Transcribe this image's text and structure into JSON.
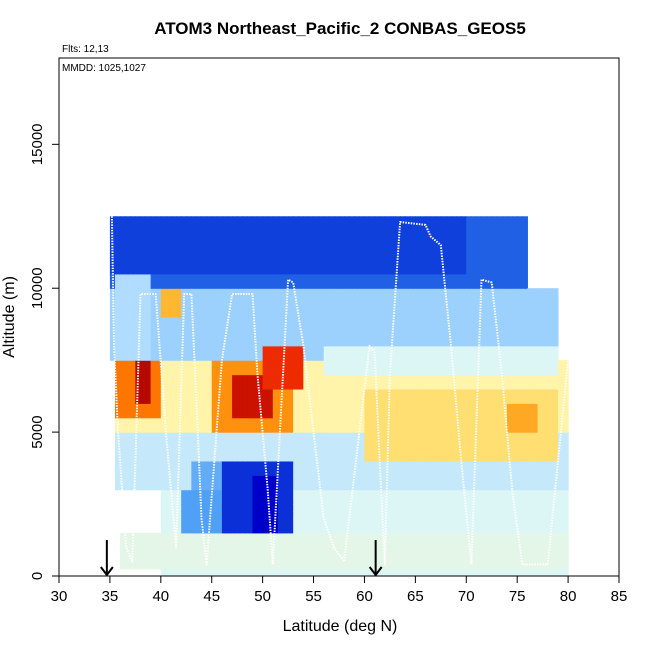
{
  "chart_data": {
    "type": "heatmap",
    "title": "ATOM3 Northeast_Pacific_2 CONBAS_GEOS5",
    "annotations": [
      "Flts: 12,13",
      "MMDD: 1025,1027"
    ],
    "xlabel": "Latitude (deg N)",
    "ylabel": "Altitude (m)",
    "xlim": [
      30,
      85
    ],
    "ylim": [
      0,
      18000
    ],
    "xticks": [
      30,
      35,
      40,
      45,
      50,
      55,
      60,
      65,
      70,
      75,
      80,
      85
    ],
    "yticks": [
      0,
      5000,
      10000,
      15000
    ],
    "grid": false,
    "legend": "none",
    "colors": {
      "deep_blue": "#0000c8",
      "blue": "#1f6fe0",
      "light_blue": "#a9d8ff",
      "pale_cyan": "#dff6f6",
      "pale_yellow": "#fff6b0",
      "orange": "#ff9900",
      "red": "#e00000",
      "track": "#ffffff",
      "arrow": "#000000"
    },
    "level_scale": "0 = deep blue (low), 4 = pale, 8 = dark red (high)",
    "regions": [
      {
        "lat": [
          40,
          80
        ],
        "alt": [
          0,
          3000
        ],
        "level": 3.6
      },
      {
        "lat": [
          35.5,
          80
        ],
        "alt": [
          3000,
          5000
        ],
        "level": 3.3
      },
      {
        "lat": [
          35.5,
          80
        ],
        "alt": [
          5000,
          7500
        ],
        "level": 4.6
      },
      {
        "lat": [
          35,
          79
        ],
        "alt": [
          7500,
          10000
        ],
        "level": 2.8
      },
      {
        "lat": [
          35,
          76
        ],
        "alt": [
          10000,
          12500
        ],
        "level": 1.2
      },
      {
        "lat": [
          43,
          52
        ],
        "alt": [
          3000,
          4000
        ],
        "level": 2.2
      },
      {
        "lat": [
          46,
          53
        ],
        "alt": [
          1000,
          4000
        ],
        "level": 0.6
      },
      {
        "lat": [
          49,
          51.5
        ],
        "alt": [
          1500,
          3500
        ],
        "level": 0.0
      },
      {
        "lat": [
          42,
          46
        ],
        "alt": [
          1000,
          3000
        ],
        "level": 2.0
      },
      {
        "lat": [
          45,
          53
        ],
        "alt": [
          5000,
          7500
        ],
        "level": 6.3
      },
      {
        "lat": [
          47,
          51
        ],
        "alt": [
          5500,
          7000
        ],
        "level": 7.6
      },
      {
        "lat": [
          50,
          54
        ],
        "alt": [
          6500,
          8000
        ],
        "level": 7.2
      },
      {
        "lat": [
          35.5,
          40
        ],
        "alt": [
          5500,
          7500
        ],
        "level": 6.6
      },
      {
        "lat": [
          37.5,
          39
        ],
        "alt": [
          6000,
          8000
        ],
        "level": 7.8
      },
      {
        "lat": [
          61,
          75
        ],
        "alt": [
          4500,
          5500
        ],
        "level": 6.4
      },
      {
        "lat": [
          60,
          79
        ],
        "alt": [
          4000,
          6500
        ],
        "level": 5.1
      },
      {
        "lat": [
          40,
          42
        ],
        "alt": [
          9000,
          10000
        ],
        "level": 5.8
      },
      {
        "lat": [
          36,
          80
        ],
        "alt": [
          200,
          1500
        ],
        "level": 3.8
      },
      {
        "lat": [
          35.5,
          39
        ],
        "alt": [
          7500,
          10500
        ],
        "level": 3.0
      },
      {
        "lat": [
          56,
          79
        ],
        "alt": [
          7000,
          8000
        ],
        "level": 3.6
      },
      {
        "lat": [
          74,
          77
        ],
        "alt": [
          5000,
          6000
        ],
        "level": 6.0
      },
      {
        "lat": [
          35,
          70
        ],
        "alt": [
          10500,
          12500
        ],
        "level": 0.8
      }
    ],
    "flight_track": [
      [
        35.2,
        12500
      ],
      [
        35.4,
        8000
      ],
      [
        35.8,
        5000
      ],
      [
        36.2,
        3000
      ],
      [
        36.6,
        1000
      ],
      [
        37.2,
        500
      ],
      [
        38,
        9800
      ],
      [
        39.5,
        9800
      ],
      [
        40.5,
        5000
      ],
      [
        41.5,
        1000
      ],
      [
        42.3,
        9800
      ],
      [
        43,
        9800
      ],
      [
        43.5,
        6000
      ],
      [
        44,
        2000
      ],
      [
        44.5,
        400
      ],
      [
        46,
        7500
      ],
      [
        47,
        9800
      ],
      [
        49,
        9800
      ],
      [
        49.5,
        7000
      ],
      [
        50.5,
        3000
      ],
      [
        51,
        400
      ],
      [
        52.5,
        10300
      ],
      [
        53,
        10200
      ],
      [
        54,
        8000
      ],
      [
        55,
        5000
      ],
      [
        56,
        2000
      ],
      [
        57,
        1000
      ],
      [
        58,
        500
      ],
      [
        60.5,
        8000
      ],
      [
        61,
        7800
      ],
      [
        61.5,
        4000
      ],
      [
        62,
        400
      ],
      [
        62.5,
        7000
      ],
      [
        63.5,
        12300
      ],
      [
        66,
        12200
      ],
      [
        66.5,
        11800
      ],
      [
        67.5,
        11500
      ],
      [
        68.5,
        8000
      ],
      [
        69.5,
        4000
      ],
      [
        70.5,
        400
      ],
      [
        71.5,
        10300
      ],
      [
        72.5,
        10200
      ],
      [
        73.5,
        7000
      ],
      [
        74.5,
        3000
      ],
      [
        75.5,
        400
      ],
      [
        78,
        400
      ],
      [
        80,
        7500
      ]
    ],
    "arrows": [
      34.7,
      61.1
    ]
  }
}
